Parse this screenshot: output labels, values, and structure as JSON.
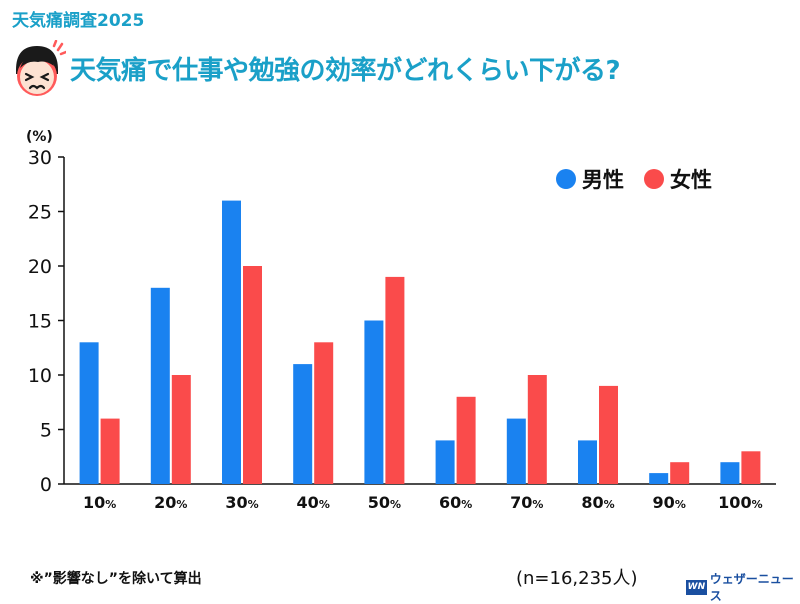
{
  "header": {
    "survey_tag": "天気痛調査2025",
    "title": "天気痛で仕事や勉強の効率がどれくらい下がる?",
    "icon": "distressed-face-icon"
  },
  "chart_data": {
    "type": "bar",
    "title": "天気痛で仕事や勉強の効率がどれくらい下がる?",
    "ylabel": "(%)",
    "xlabel": "",
    "ylim": [
      0,
      30
    ],
    "yticks": [
      0,
      5,
      10,
      15,
      20,
      25,
      30
    ],
    "categories": [
      "10%",
      "20%",
      "30%",
      "40%",
      "50%",
      "60%",
      "70%",
      "80%",
      "90%",
      "100%"
    ],
    "series": [
      {
        "name": "男性",
        "color": "#1a82f0",
        "values": [
          13,
          18,
          26,
          11,
          15,
          4,
          6,
          4,
          1,
          2
        ]
      },
      {
        "name": "女性",
        "color": "#fa4b4b",
        "values": [
          6,
          10,
          20,
          13,
          19,
          8,
          10,
          9,
          2,
          3
        ]
      }
    ],
    "legend_position": "top-right",
    "grid": false
  },
  "footer": {
    "note": "※”影響なし”を除いて算出",
    "sample_size": "(n=16,235人)",
    "brand_logo": "WN",
    "brand_name": "ウェザーニュース"
  }
}
